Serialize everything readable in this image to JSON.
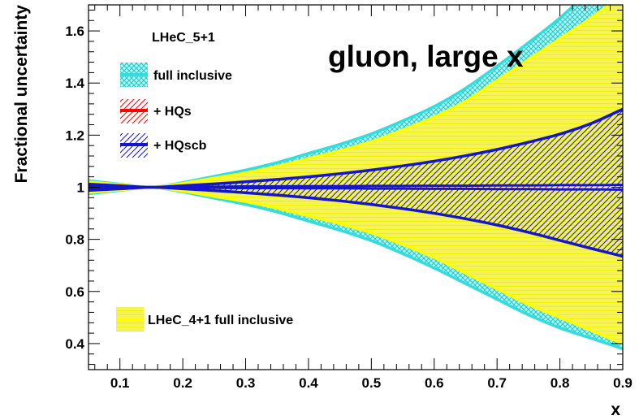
{
  "chart_data": {
    "type": "area",
    "title": "gluon, large x",
    "legend_header": "LHeC_5+1",
    "xlabel": "x",
    "ylabel": "Fractional uncertainty",
    "xlim": [
      0.05,
      0.9
    ],
    "ylim": [
      0.3,
      1.7
    ],
    "x_ticks": [
      0.1,
      0.2,
      0.3,
      0.4,
      0.5,
      0.6,
      0.7,
      0.8,
      0.9
    ],
    "x_tick_labels": [
      "0.1",
      "0.2",
      "0.3",
      "0.4",
      "0.5",
      "0.6",
      "0.7",
      "0.8",
      "0.9"
    ],
    "y_ticks": [
      0.4,
      0.6,
      0.8,
      1.0,
      1.2,
      1.4,
      1.6
    ],
    "y_tick_labels": [
      "0.4",
      "0.6",
      "0.8",
      "1",
      "1.2",
      "1.4",
      "1.6"
    ],
    "x": [
      0.05,
      0.1,
      0.15,
      0.2,
      0.25,
      0.3,
      0.35,
      0.4,
      0.45,
      0.5,
      0.55,
      0.6,
      0.65,
      0.7,
      0.75,
      0.8,
      0.85,
      0.9
    ],
    "series": [
      {
        "name": "LHeC_4+1 full inclusive",
        "color": "#ffff00",
        "upper": [
          1.02,
          1.01,
          1.0,
          1.015,
          1.035,
          1.055,
          1.08,
          1.11,
          1.14,
          1.175,
          1.22,
          1.27,
          1.33,
          1.41,
          1.49,
          1.57,
          1.65,
          1.74
        ],
        "lower": [
          0.98,
          0.99,
          1.0,
          0.985,
          0.965,
          0.945,
          0.92,
          0.89,
          0.86,
          0.825,
          0.78,
          0.73,
          0.67,
          0.61,
          0.55,
          0.5,
          0.45,
          0.4
        ]
      },
      {
        "name": "full inclusive",
        "color": "#33dddd",
        "upper": [
          1.025,
          1.012,
          1.0,
          1.018,
          1.042,
          1.066,
          1.095,
          1.13,
          1.165,
          1.205,
          1.255,
          1.31,
          1.38,
          1.465,
          1.555,
          1.65,
          1.76,
          1.87
        ],
        "lower": [
          0.975,
          0.988,
          1.0,
          0.982,
          0.958,
          0.934,
          0.905,
          0.87,
          0.835,
          0.795,
          0.745,
          0.69,
          0.63,
          0.57,
          0.51,
          0.46,
          0.42,
          0.38
        ]
      },
      {
        "name": "+ HQs",
        "color": "#ff0000",
        "upper": [
          1.004,
          1.002,
          1.0,
          1.001,
          1.002,
          1.003,
          1.003,
          1.004,
          1.004,
          1.005,
          1.005,
          1.006,
          1.006,
          1.007,
          1.007,
          1.008,
          1.008,
          1.009
        ],
        "lower": [
          0.996,
          0.998,
          1.0,
          0.999,
          0.998,
          0.997,
          0.997,
          0.996,
          0.996,
          0.995,
          0.995,
          0.994,
          0.994,
          0.993,
          0.993,
          0.992,
          0.992,
          0.991
        ]
      },
      {
        "name": "+ HQscb",
        "color": "#1515cc",
        "upper": [
          1.012,
          1.006,
          1.0,
          1.006,
          1.013,
          1.021,
          1.03,
          1.04,
          1.052,
          1.066,
          1.082,
          1.1,
          1.121,
          1.145,
          1.173,
          1.204,
          1.245,
          1.3
        ],
        "lower": [
          0.988,
          0.994,
          1.0,
          0.994,
          0.987,
          0.979,
          0.97,
          0.96,
          0.948,
          0.934,
          0.918,
          0.9,
          0.879,
          0.855,
          0.827,
          0.796,
          0.765,
          0.735
        ]
      }
    ],
    "legend_position": "top-left"
  },
  "colors": {
    "yellow": "#ffff00",
    "cyan": "#33dddd",
    "red": "#ff0000",
    "blue": "#1515cc"
  }
}
